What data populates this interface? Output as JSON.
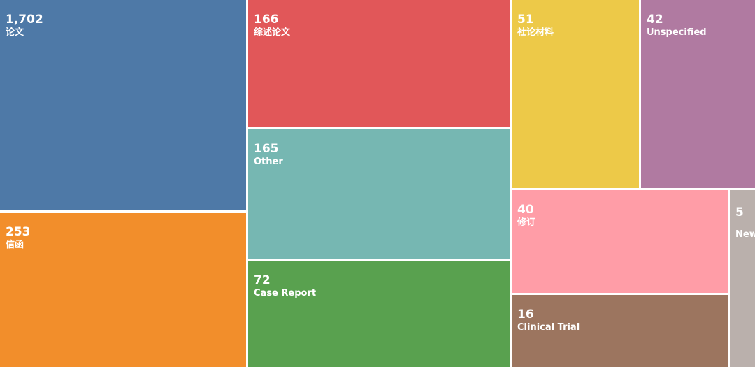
{
  "chart_data": {
    "type": "treemap",
    "title": "",
    "items": [
      {
        "label": "论文",
        "value": 1702,
        "display": "1,702",
        "color": "#4e79a7"
      },
      {
        "label": "信函",
        "value": 253,
        "display": "253",
        "color": "#f28e2b"
      },
      {
        "label": "综述论文",
        "value": 166,
        "display": "166",
        "color": "#e15759"
      },
      {
        "label": "Other",
        "value": 165,
        "display": "165",
        "color": "#76b7b2"
      },
      {
        "label": "Case Report",
        "value": 72,
        "display": "72",
        "color": "#59a14f"
      },
      {
        "label": "社论材料",
        "value": 51,
        "display": "51",
        "color": "#edc948"
      },
      {
        "label": "Unspecified",
        "value": 42,
        "display": "42",
        "color": "#b07aa1"
      },
      {
        "label": "修订",
        "value": 40,
        "display": "40",
        "color": "#ff9da7"
      },
      {
        "label": "Clinical Trial",
        "value": 16,
        "display": "16",
        "color": "#9c755f"
      },
      {
        "label": "New",
        "value": 5,
        "display": "5",
        "color": "#bab0ac"
      }
    ]
  }
}
